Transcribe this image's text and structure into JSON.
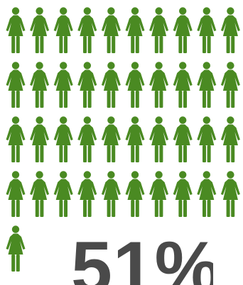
{
  "chart_data": {
    "type": "pictogram",
    "icon": "female-figure-icon",
    "total_icons": 41,
    "icons_per_row": 10,
    "value_label": "51%",
    "colors": {
      "icon": "#4a8a22",
      "label": "#4a4a4a",
      "background": "#ffffff"
    }
  }
}
